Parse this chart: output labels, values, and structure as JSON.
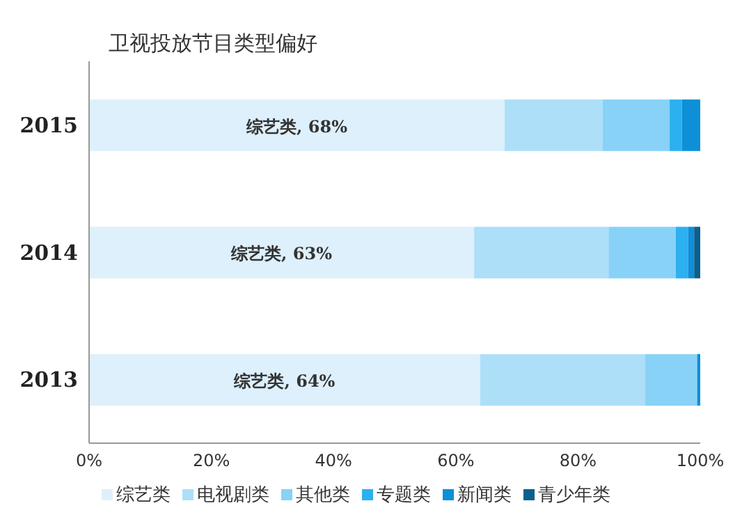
{
  "chart_data": {
    "type": "bar",
    "orientation": "horizontal",
    "stacked": true,
    "title": "卫视投放节目类型偏好",
    "categories": [
      "2015",
      "2014",
      "2013"
    ],
    "series": [
      {
        "name": "综艺类",
        "color": "#ddf0fc",
        "values": [
          68,
          63,
          64
        ],
        "value_labels": [
          "综艺类, 68%",
          "综艺类, 63%",
          "综艺类, 64%"
        ]
      },
      {
        "name": "电视剧类",
        "color": "#addff9",
        "values": [
          16,
          22,
          27
        ]
      },
      {
        "name": "其他类",
        "color": "#88d2f8",
        "values": [
          11,
          11,
          8.5
        ]
      },
      {
        "name": "专题类",
        "color": "#2cb0ef",
        "values": [
          2,
          2,
          0
        ]
      },
      {
        "name": "新闻类",
        "color": "#0e8fd8",
        "values": [
          3,
          1,
          0.5
        ]
      },
      {
        "name": "青少年类",
        "color": "#0b5f8e",
        "values": [
          0,
          1,
          0
        ]
      }
    ],
    "xlim": [
      0,
      100
    ],
    "xticks": [
      {
        "value": 0,
        "label": "0%"
      },
      {
        "value": 20,
        "label": "20%"
      },
      {
        "value": 40,
        "label": "40%"
      },
      {
        "value": 60,
        "label": "60%"
      },
      {
        "value": 80,
        "label": "80%"
      },
      {
        "value": 100,
        "label": "100%"
      }
    ],
    "grid": false,
    "legend": "bottom"
  }
}
